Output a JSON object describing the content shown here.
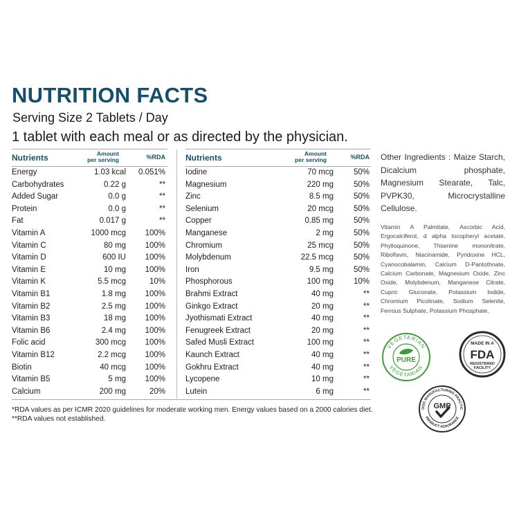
{
  "title": "NUTRITION FACTS",
  "serving": "Serving Size 2 Tablets / Day",
  "dosage": "1 tablet with each meal or as directed by the physician.",
  "table_headers": {
    "nutrients": "Nutrients",
    "amount_1": "Amount",
    "amount_2": "per serving",
    "rda": "%RDA"
  },
  "left_rows": [
    {
      "name": "Energy",
      "amount": "1.03 kcal",
      "rda": "0.051%"
    },
    {
      "name": "Carbohydrates",
      "amount": "0.22 g",
      "rda": "**"
    },
    {
      "name": "Added Sugar",
      "amount": "0.0 g",
      "rda": "**"
    },
    {
      "name": "Protein",
      "amount": "0.0 g",
      "rda": "**"
    },
    {
      "name": "Fat",
      "amount": "0.017 g",
      "rda": "**"
    },
    {
      "name": "Vitamin A",
      "amount": "1000 mcg",
      "rda": "100%"
    },
    {
      "name": "Vitamin C",
      "amount": "80 mg",
      "rda": "100%"
    },
    {
      "name": "Vitamin D",
      "amount": "600 IU",
      "rda": "100%"
    },
    {
      "name": "Vitamin E",
      "amount": "10 mg",
      "rda": "100%"
    },
    {
      "name": "Vitamin K",
      "amount": "5.5 mcg",
      "rda": "10%"
    },
    {
      "name": "Vitamin B1",
      "amount": "1.8 mg",
      "rda": "100%"
    },
    {
      "name": "Vitamin B2",
      "amount": "2.5 mg",
      "rda": "100%"
    },
    {
      "name": "Vitamin B3",
      "amount": "18 mg",
      "rda": "100%"
    },
    {
      "name": "Vitamin B6",
      "amount": "2.4 mg",
      "rda": "100%"
    },
    {
      "name": "Folic acid",
      "amount": "300 mcg",
      "rda": "100%"
    },
    {
      "name": "Vitamin B12",
      "amount": "2.2 mcg",
      "rda": "100%"
    },
    {
      "name": "Biotin",
      "amount": "40 mcg",
      "rda": "100%"
    },
    {
      "name": "Vitamin B5",
      "amount": "5 mg",
      "rda": "100%"
    },
    {
      "name": "Calcium",
      "amount": "200 mg",
      "rda": "20%"
    }
  ],
  "right_rows": [
    {
      "name": "Iodine",
      "amount": "70 mcg",
      "rda": "50%"
    },
    {
      "name": "Magnesium",
      "amount": "220 mg",
      "rda": "50%"
    },
    {
      "name": "Zinc",
      "amount": "8.5 mg",
      "rda": "50%"
    },
    {
      "name": "Selenium",
      "amount": "20 mcg",
      "rda": "50%"
    },
    {
      "name": "Copper",
      "amount": "0.85 mg",
      "rda": "50%"
    },
    {
      "name": "Manganese",
      "amount": "2 mg",
      "rda": "50%"
    },
    {
      "name": "Chromium",
      "amount": "25 mcg",
      "rda": "50%"
    },
    {
      "name": "Molybdenum",
      "amount": "22.5 mcg",
      "rda": "50%"
    },
    {
      "name": "Iron",
      "amount": "9.5 mg",
      "rda": "50%"
    },
    {
      "name": "Phosphorous",
      "amount": "100 mg",
      "rda": "10%"
    },
    {
      "name": "Brahmi Extract",
      "amount": "40 mg",
      "rda": "**"
    },
    {
      "name": "Ginkgo Extract",
      "amount": "20 mg",
      "rda": "**"
    },
    {
      "name": "Jyothismati Extract",
      "amount": "40 mg",
      "rda": "**"
    },
    {
      "name": "Fenugreek Extract",
      "amount": "20 mg",
      "rda": "**"
    },
    {
      "name": "Safed Musli Extract",
      "amount": "100 mg",
      "rda": "**"
    },
    {
      "name": "Kaunch Extract",
      "amount": "40 mg",
      "rda": "**"
    },
    {
      "name": "Gokhru Extract",
      "amount": "40 mg",
      "rda": "**"
    },
    {
      "name": "Lycopene",
      "amount": "10 mg",
      "rda": "**"
    },
    {
      "name": "Lutein",
      "amount": "6 mg",
      "rda": "**"
    }
  ],
  "footnotes": [
    "*RDA values as per ICMR 2020 guidelines for moderate working men. Energy values based on a 2000 calories diet.",
    "**RDA values not established."
  ],
  "other_ingredients": "Other Ingredients : Maize Starch, Dicalcium phosphate, Magnesium Stearate, Talc, PVPK30, Microcrystalline Cellulose.",
  "vitamin_forms": "Vitamin A Palmitate, Ascorbic Acid, Ergocalciferol, d alpha tocopheryl acetate, Phylloquinone, Thiamine mononitrate, Riboflavin, Niacinamide, Pyridoxine HCL, Cyanocobalamin, Calcium D-Pantothnate, Calcium Carbonate, Magnesium Oxide, Zinc Oxide, Molybdenum, Manganese Citrate, Cupric Gluconate, Potassium Iodide, Chromium Picolinate, Sodium Selenite, Ferrous Sulphate, Potassium Phosphate.",
  "badges": {
    "veg_top": "VEGETARIAN",
    "veg_mid": "PURE",
    "veg_bottom": "VEGETARIAN",
    "fda_top": "MADE IN A",
    "fda_mark": "FDA",
    "fda_bottom_1": "REGISTERED",
    "fda_bottom_2": "FACILITY",
    "gmp_ring": "GOOD MANUFACTURING PRACTICE",
    "gmp_center": "GMP",
    "gmp_bottom": "PRODUCT ASSURANCE"
  },
  "colors": {
    "title": "#154f69",
    "header": "#154f69",
    "veg_green": "#3f9a3a",
    "badge_dark": "#2a2a2a"
  }
}
